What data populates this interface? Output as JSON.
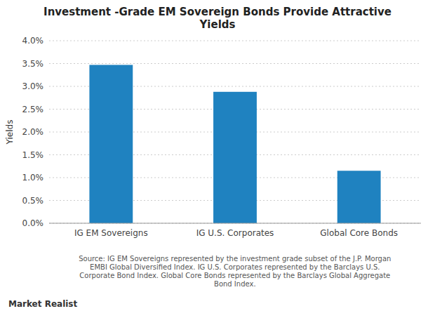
{
  "chart_data": {
    "type": "bar",
    "title": "Investment -Grade EM Sovereign Bonds Provide Attractive\nYields",
    "categories": [
      "IG EM Sovereigns",
      "IG U.S. Corporates",
      "Global Core Bonds"
    ],
    "values": [
      0.0347,
      0.0288,
      0.0115
    ],
    "color": "#1f82c0",
    "ylabel": "Yields",
    "ylim": [
      0,
      0.04
    ],
    "yticks": [
      {
        "value": 0.0,
        "label": "0.0%"
      },
      {
        "value": 0.005,
        "label": "0.5%"
      },
      {
        "value": 0.01,
        "label": "1.0%"
      },
      {
        "value": 0.015,
        "label": "1.5%"
      },
      {
        "value": 0.02,
        "label": "2.0%"
      },
      {
        "value": 0.025,
        "label": "2.5%"
      },
      {
        "value": 0.03,
        "label": "3.0%"
      },
      {
        "value": 0.035,
        "label": "3.5%"
      },
      {
        "value": 0.04,
        "label": "4.0%"
      }
    ],
    "grid": true,
    "annotations": [
      "Source: IG EM Sovereigns represented by the investment grade subset of the J.P. Morgan\nEMBI Global Diversified Index. IG U.S. Corporates represented by the Barclays U.S.\nCorporate Bond Index. Global Core Bonds represented by the Barclays Global Aggregate\nBond Index.",
      "Market Realist"
    ]
  }
}
